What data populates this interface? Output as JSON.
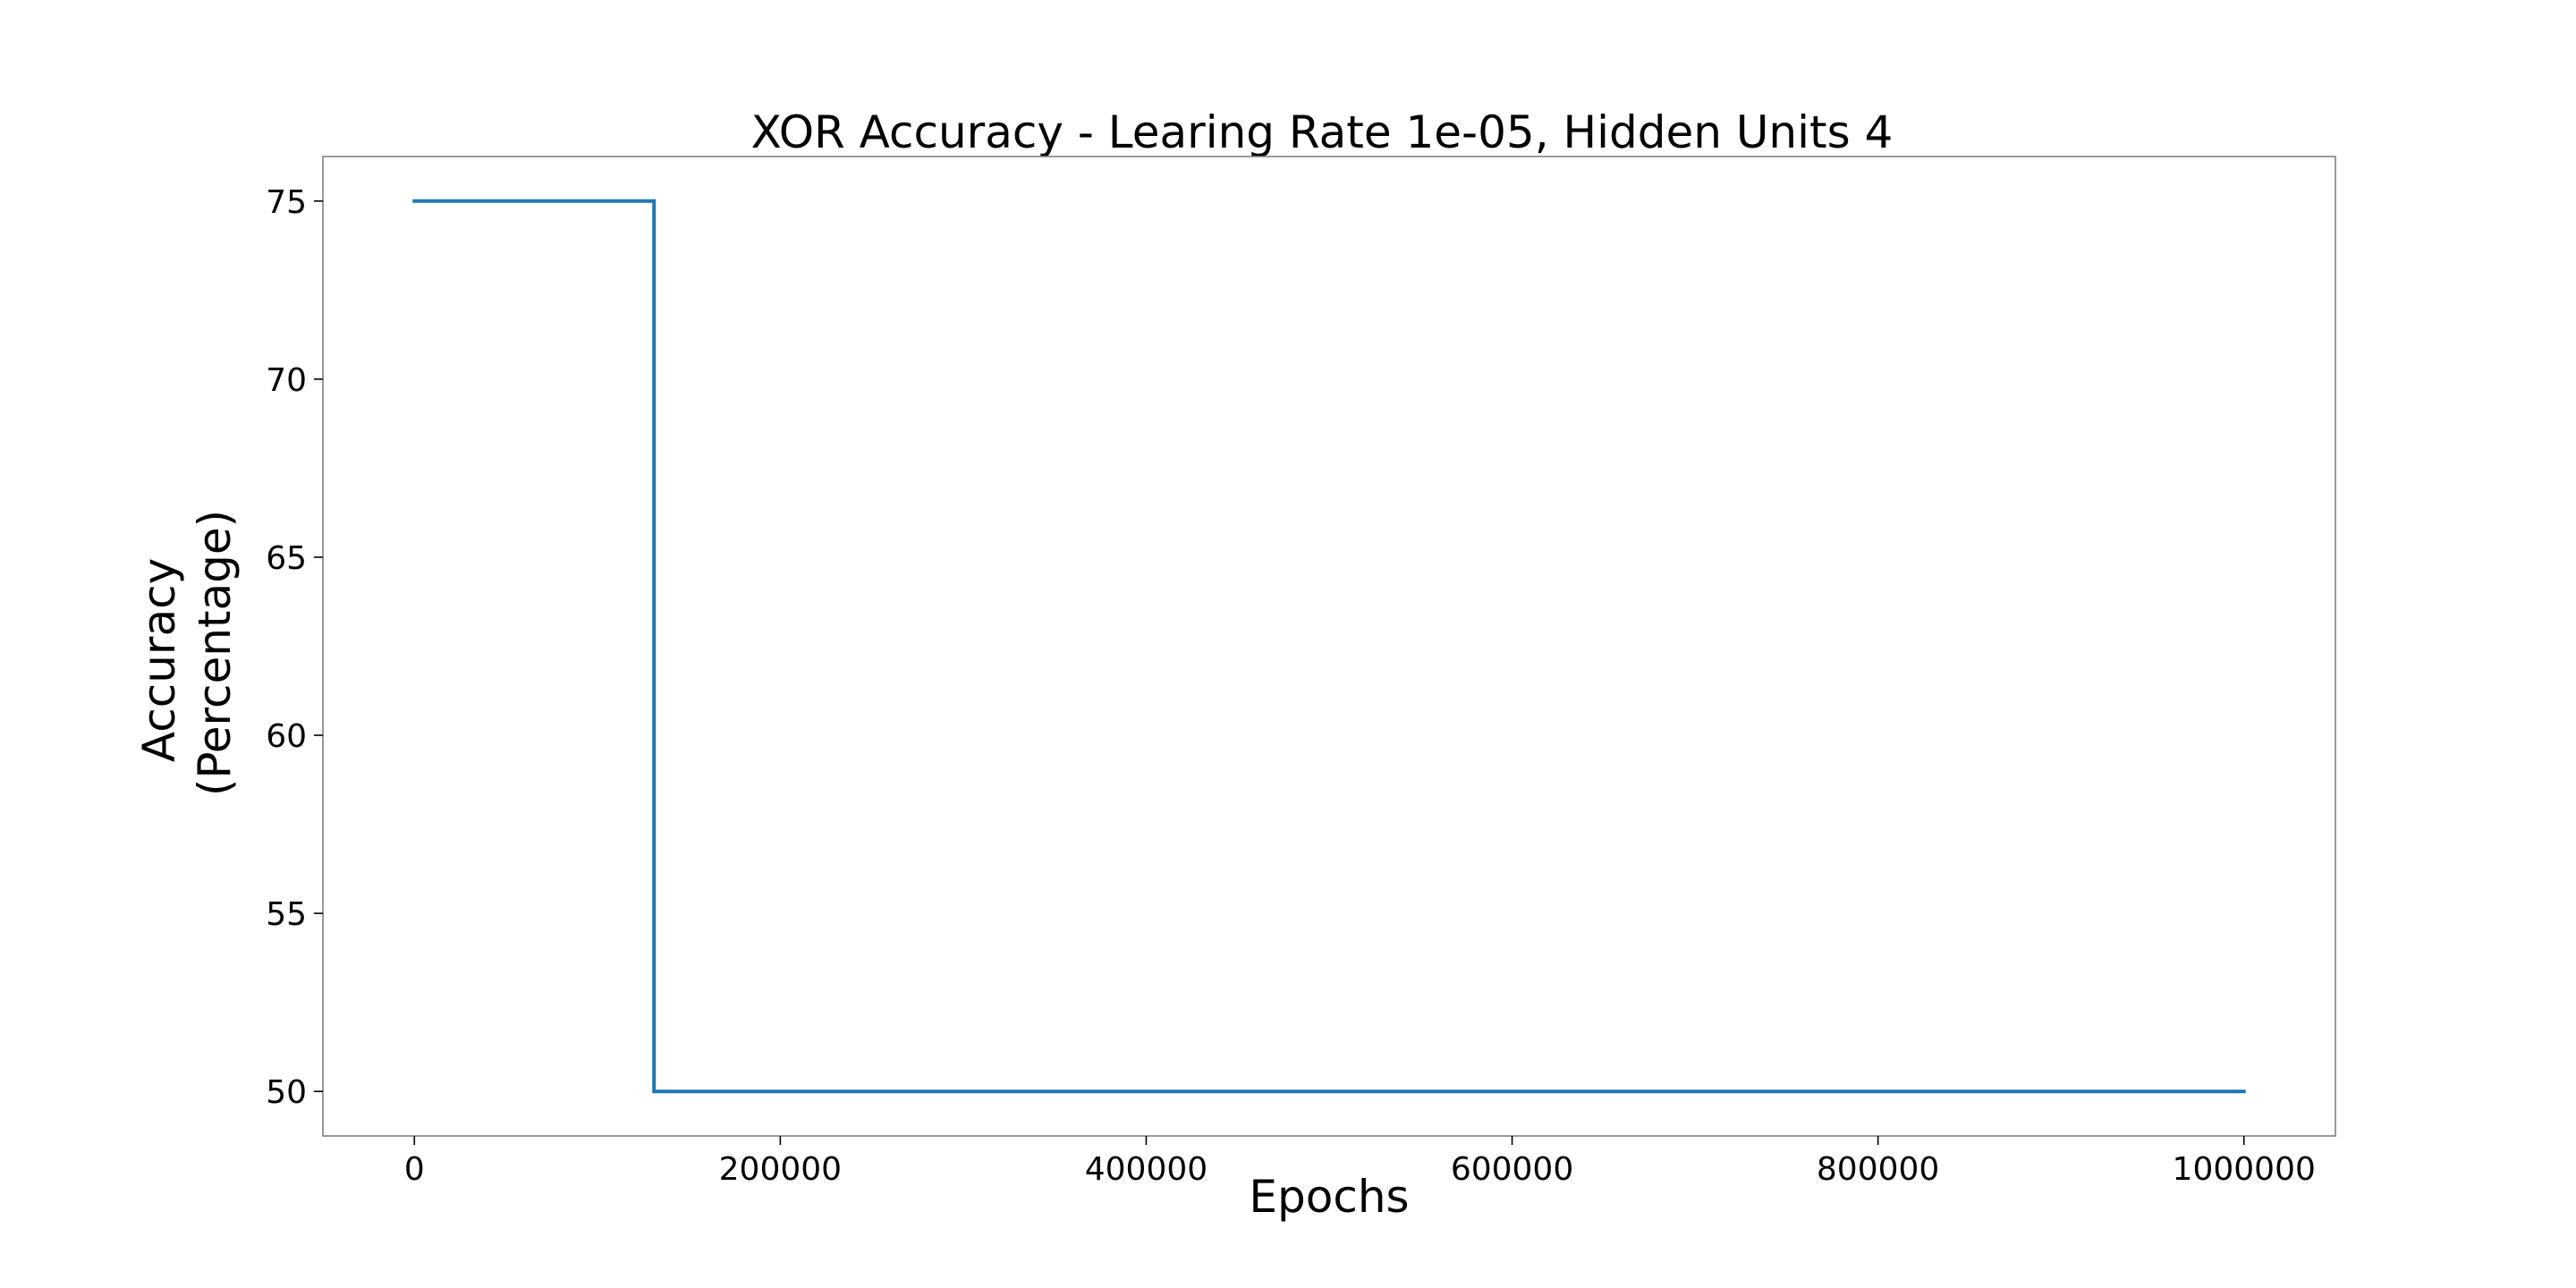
{
  "chart_data": {
    "type": "line",
    "title": "XOR Accuracy - Learing Rate 1e-05, Hidden Units 4",
    "xlabel": "Epochs",
    "ylabel_lines": [
      "Accuracy",
      "(Percentage)"
    ],
    "xlim": [
      -50000,
      1050000
    ],
    "ylim": [
      48.75,
      76.25
    ],
    "xticks": [
      0,
      200000,
      400000,
      600000,
      800000,
      1000000
    ],
    "xtick_labels": [
      "0",
      "200000",
      "400000",
      "600000",
      "800000",
      "1000000"
    ],
    "yticks": [
      50,
      55,
      60,
      65,
      70,
      75
    ],
    "ytick_labels": [
      "50",
      "55",
      "60",
      "65",
      "70",
      "75"
    ],
    "grid": false,
    "series": [
      {
        "color": "#1f77b4",
        "x": [
          0,
          131000,
          131000,
          1000000
        ],
        "y": [
          75,
          75,
          50,
          50
        ]
      }
    ]
  }
}
